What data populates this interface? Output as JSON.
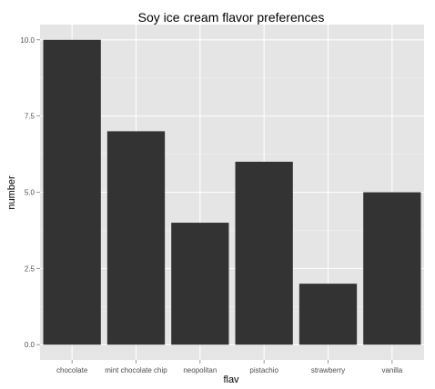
{
  "chart_data": {
    "type": "bar",
    "title": "Soy ice cream flavor preferences",
    "xlabel": "flav",
    "ylabel": "number",
    "categories": [
      "chocolate",
      "mint chocolate chip",
      "neopolitan",
      "pistachio",
      "strawberry",
      "vanilla"
    ],
    "values": [
      10,
      7,
      4,
      6,
      2,
      5
    ],
    "y_ticks": [
      "0.0",
      "2.5",
      "5.0",
      "7.5",
      "10.0"
    ],
    "ylim": [
      -0.5,
      10.5
    ],
    "grid": true,
    "legend": "none",
    "colors": {
      "bar": "#333333",
      "panel": "#e5e5e5",
      "grid_major": "#ffffff",
      "grid_minor": "#f2f2f2",
      "tick_text": "#4d4d4d"
    }
  }
}
